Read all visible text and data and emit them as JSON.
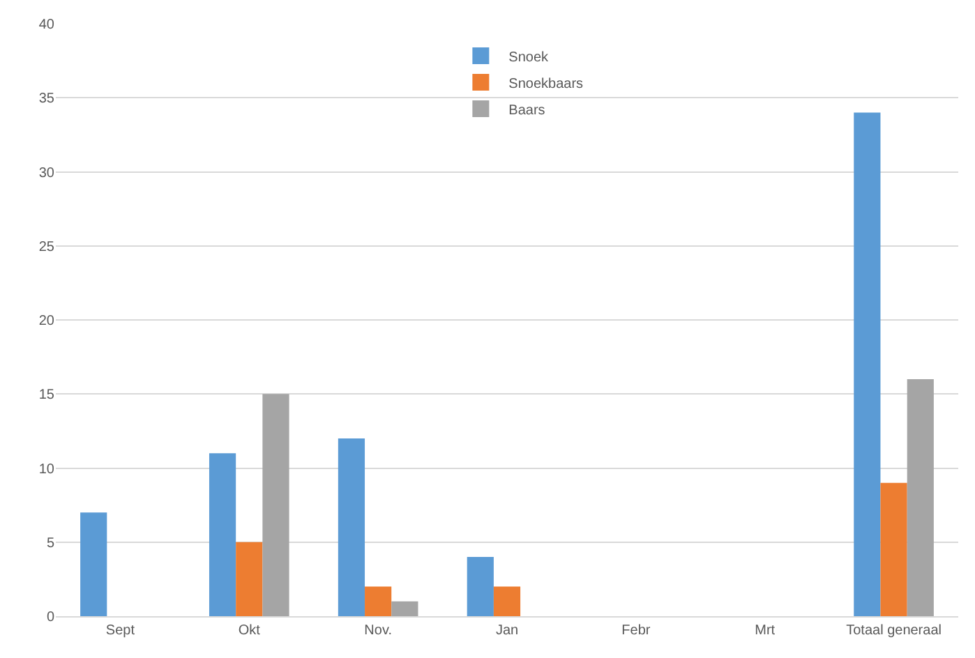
{
  "chart_data": {
    "type": "bar",
    "categories": [
      "Sept",
      "Okt",
      "Nov.",
      "Jan",
      "Febr",
      "Mrt",
      "Totaal generaal"
    ],
    "series": [
      {
        "name": "Snoek",
        "color": "#5b9bd5",
        "values": [
          7,
          11,
          12,
          4,
          null,
          null,
          34
        ]
      },
      {
        "name": "Snoekbaars",
        "color": "#ed7d31",
        "values": [
          null,
          5,
          2,
          2,
          null,
          null,
          9
        ]
      },
      {
        "name": "Baars",
        "color": "#a5a5a5",
        "values": [
          null,
          15,
          1,
          null,
          null,
          null,
          16
        ]
      }
    ],
    "ylim": [
      0,
      40
    ],
    "yticks": [
      0,
      5,
      10,
      15,
      20,
      25,
      30,
      35,
      40
    ],
    "grid": "y",
    "legend": "top"
  }
}
